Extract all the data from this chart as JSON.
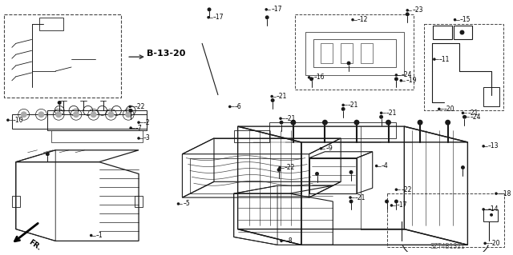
{
  "bg_color": "#ffffff",
  "fig_width": 6.4,
  "fig_height": 3.19,
  "dpi": 100,
  "ref_code": "SZT4B1321",
  "diagram_ref": "B-13-20",
  "line_color": "#1a1a1a",
  "text_color": "#000000",
  "fs": 5.5,
  "fs_bold": 7.5,
  "fs_ref": 6.0
}
